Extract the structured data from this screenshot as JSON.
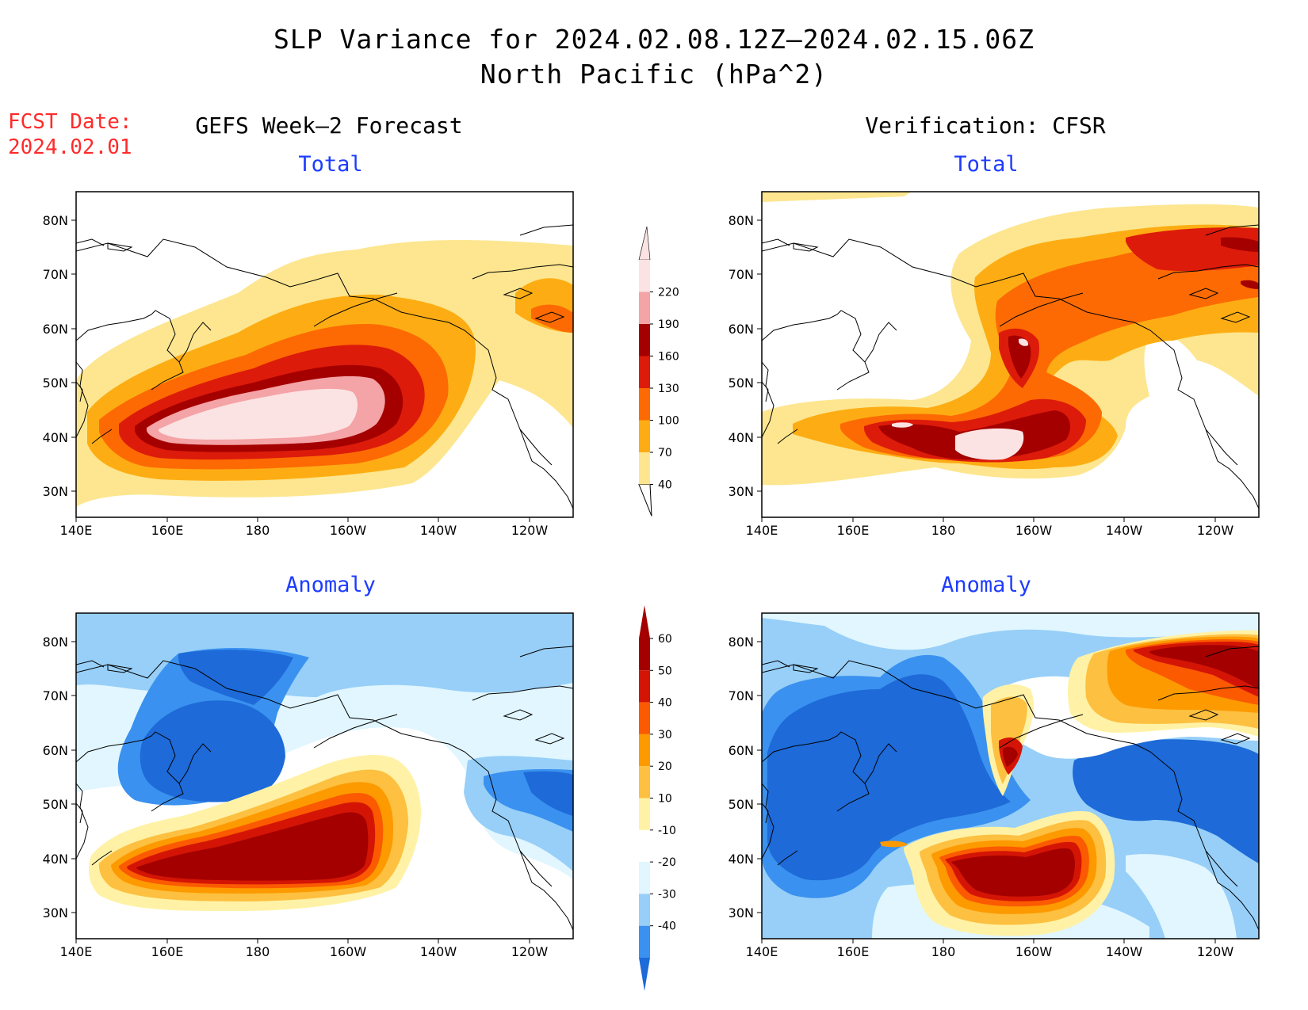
{
  "header": {
    "title": "SLP Variance for 2024.02.08.12Z–2024.02.15.06Z",
    "subtitle": "North Pacific (hPa^2)",
    "fcst_label": "FCST Date:",
    "fcst_date": "2024.02.01"
  },
  "columns": {
    "left": "GEFS Week–2 Forecast",
    "right": "Verification: CFSR"
  },
  "panels": {
    "top_left_title": "Total",
    "top_right_title": "Total",
    "bottom_left_title": "Anomaly",
    "bottom_right_title": "Anomaly"
  },
  "axes": {
    "lat_labels": [
      "80N",
      "70N",
      "60N",
      "50N",
      "40N",
      "30N"
    ],
    "lon_labels": [
      "140E",
      "160E",
      "180",
      "160W",
      "140W",
      "120W"
    ]
  },
  "colorbars": {
    "total": {
      "labels": [
        "40",
        "70",
        "100",
        "130",
        "160",
        "190",
        "220"
      ],
      "colors": [
        "#fde68f",
        "#fdad13",
        "#fd6a03",
        "#dd1b0a",
        "#a40000",
        "#f4a3a6",
        "#fce3e3"
      ]
    },
    "anomaly": {
      "labels": [
        "-40",
        "-30",
        "-20",
        "-10",
        "10",
        "20",
        "30",
        "40",
        "50",
        "60"
      ],
      "colors": [
        "#1d6ad8",
        "#3a91ef",
        "#97cff8",
        "#e1f6ff",
        "#ffffff",
        "#fff2a6",
        "#fdc040",
        "#fd9a00",
        "#fb5a00",
        "#d41505",
        "#a40000"
      ]
    }
  }
}
